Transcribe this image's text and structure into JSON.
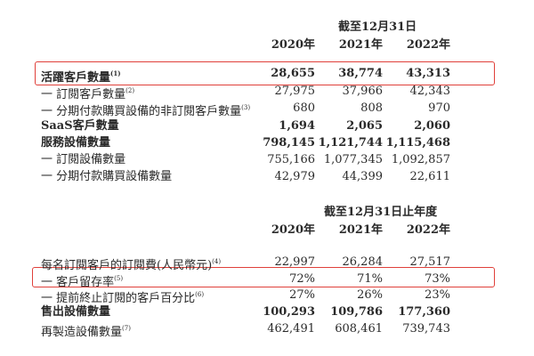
{
  "section1": {
    "header": "截至12月31日",
    "years": [
      "2020年",
      "2021年",
      "2022年"
    ],
    "rows": [
      {
        "label": "活躍客戶數量",
        "note": "(1)",
        "values": [
          "28,655",
          "38,774",
          "43,313"
        ],
        "bold": true,
        "highlighted": true
      },
      {
        "label": "一 訂閱客戶數量",
        "note": "(2)",
        "values": [
          "27,975",
          "37,966",
          "42,343"
        ],
        "bold": false
      },
      {
        "label": "一 分期付款購買設備的非訂閱客戶數量",
        "note": "(3)",
        "values": [
          "680",
          "808",
          "970"
        ],
        "bold": false
      },
      {
        "label": "SaaS客戶數量",
        "note": "",
        "values": [
          "1,694",
          "2,065",
          "2,060"
        ],
        "bold": true
      },
      {
        "label": "服務設備數量",
        "note": "",
        "values": [
          "798,145",
          "1,121,744",
          "1,115,468"
        ],
        "bold": true
      },
      {
        "label": "一 訂閱設備數量",
        "note": "",
        "values": [
          "755,166",
          "1,077,345",
          "1,092,857"
        ],
        "bold": false
      },
      {
        "label": "一 分期付款購買設備數量",
        "note": "",
        "values": [
          "42,979",
          "44,399",
          "22,611"
        ],
        "bold": false
      }
    ]
  },
  "section2": {
    "header": "截至12月31日止年度",
    "years": [
      "2020年",
      "2021年",
      "2022年"
    ],
    "rows": [
      {
        "label": "每名訂閱客戶的訂閱費(人民幣元)",
        "note": "(4)",
        "values": [
          "22,997",
          "26,284",
          "27,517"
        ],
        "bold": false
      },
      {
        "label": "一 客戶留存率",
        "note": "(5)",
        "values": [
          "72%",
          "71%",
          "73%"
        ],
        "bold": false,
        "highlighted": true
      },
      {
        "label": "一 提前終止訂閱的客戶百分比",
        "note": "(6)",
        "values": [
          "27%",
          "26%",
          "23%"
        ],
        "bold": false
      },
      {
        "label": "售出設備數量",
        "note": "",
        "values": [
          "100,293",
          "109,786",
          "177,360"
        ],
        "bold": true
      },
      {
        "label": "再製造設備數量",
        "note": "(7)",
        "values": [
          "462,491",
          "608,461",
          "739,743"
        ],
        "bold": false
      }
    ]
  },
  "colors": {
    "highlight_border": "#e0403a"
  }
}
